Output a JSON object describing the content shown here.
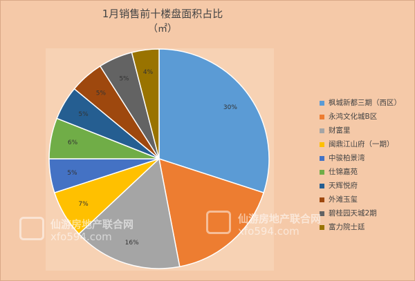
{
  "chart_data": {
    "type": "pie",
    "title": "1月销售前十楼盘面积占比",
    "subtitle": "（㎡）",
    "legend_position": "right",
    "categories": [
      "枫城新都三期（西区）",
      "永鸿文化城B区",
      "财富里",
      "闽鼎江山府（一期）",
      "中骏柏景湾",
      "仕锦嘉苑",
      "天辉悦府",
      "外滩玉玺",
      "碧桂园天城2期",
      "富力院士廷"
    ],
    "values": [
      30,
      17,
      16,
      7,
      5,
      6,
      5,
      5,
      5,
      4
    ],
    "labels": [
      "30%",
      "",
      "16%",
      "7%",
      "5%",
      "6%",
      "5%",
      "5%",
      "5%",
      "4%"
    ],
    "colors": [
      "#5b9bd5",
      "#ed7d31",
      "#a5a5a5",
      "#ffc000",
      "#4472c4",
      "#70ad47",
      "#255e91",
      "#9e480e",
      "#636363",
      "#997300"
    ]
  },
  "watermark": {
    "line1": "仙游房地产联合网",
    "line2": "xfo594.com"
  }
}
